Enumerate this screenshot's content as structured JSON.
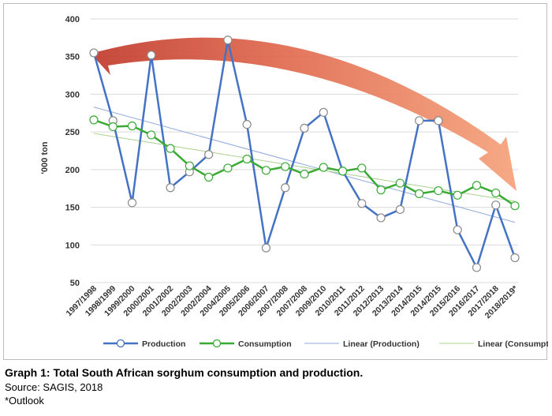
{
  "chart_data": {
    "type": "line",
    "ylabel": "'000 ton",
    "ylim": [
      50,
      400
    ],
    "yticks": [
      50,
      100,
      150,
      200,
      250,
      300,
      350,
      400
    ],
    "grid": true,
    "legend_position": "bottom",
    "categories": [
      "1997/1998",
      "1998/1999",
      "1999/2000",
      "2000/2001",
      "2001/2002",
      "2002/2003",
      "2002/2004",
      "2004/2005",
      "2005/2006",
      "2006/2007",
      "2007/2008",
      "2007/2008",
      "2009/2010",
      "2010/2011",
      "2011/2012",
      "2012/2013",
      "2013/2014",
      "2014/2015",
      "2014/2015",
      "2015/2016",
      "2016/2017",
      "2017/2018",
      "2018/2019*"
    ],
    "series": [
      {
        "name": "Production",
        "color": "#4472c4",
        "marker": "circle",
        "values": [
          355,
          265,
          156,
          352,
          176,
          197,
          220,
          372,
          260,
          96,
          176,
          255,
          276,
          198,
          155,
          136,
          147,
          265,
          265,
          120,
          70,
          153,
          83
        ]
      },
      {
        "name": "Consumption",
        "color": "#3aaa35",
        "marker": "circle",
        "values": [
          266,
          257,
          258,
          246,
          228,
          205,
          190,
          202,
          214,
          199,
          204,
          194,
          203,
          198,
          202,
          173,
          182,
          168,
          172,
          166,
          179,
          169,
          152
        ]
      },
      {
        "name": "Linear (Production)",
        "color": "#8ea9db",
        "type": "trendline",
        "from": 283,
        "to": 130
      },
      {
        "name": "Linear (Consumption)",
        "color": "#a9d18e",
        "type": "trendline",
        "from": 248,
        "to": 158
      }
    ],
    "annotation": {
      "type": "arrow",
      "description": "curved arrow from dark red to light orange spanning the chart, indicating declining trend"
    }
  },
  "caption": {
    "title": "Graph 1: Total South African sorghum consumption and production.",
    "source": "Source: SAGIS, 2018",
    "note": "*Outlook"
  }
}
